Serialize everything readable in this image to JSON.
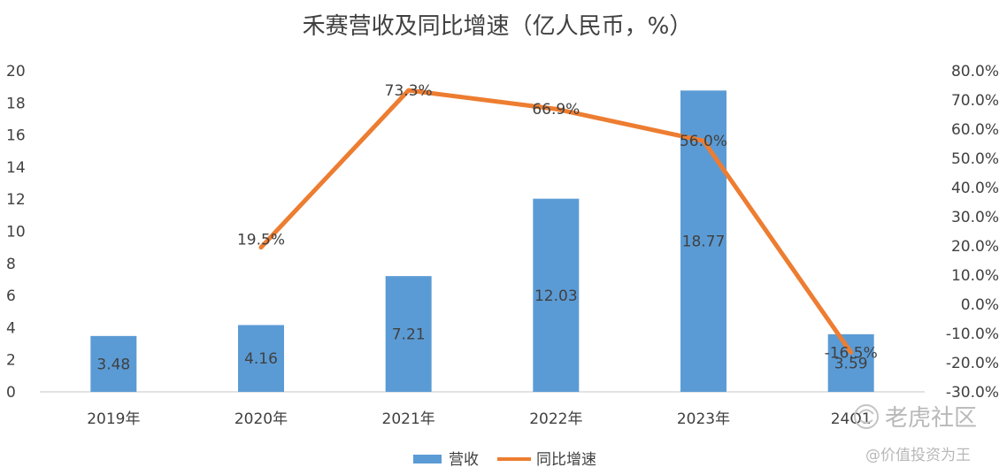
{
  "chart_data": {
    "type": "bar",
    "title": "禾赛营收及同比增速（亿人民币，%）",
    "categories": [
      "2019年",
      "2020年",
      "2021年",
      "2022年",
      "2023年",
      "24Q1"
    ],
    "series": [
      {
        "name": "营收",
        "type": "bar",
        "axis": "left",
        "values": [
          3.48,
          4.16,
          7.21,
          12.03,
          18.77,
          3.59
        ],
        "labels": [
          "3.48",
          "4.16",
          "7.21",
          "12.03",
          "18.77",
          "3.59"
        ]
      },
      {
        "name": "同比增速",
        "type": "line",
        "axis": "right",
        "values": [
          null,
          19.5,
          73.3,
          66.9,
          56.0,
          -16.5
        ],
        "labels": [
          "",
          "19.5%",
          "73.3%",
          "66.9%",
          "56.0%",
          "-16.5%"
        ]
      }
    ],
    "y_left": {
      "range": [
        0,
        20
      ],
      "ticks": [
        "0",
        "2",
        "4",
        "6",
        "8",
        "10",
        "12",
        "14",
        "16",
        "18",
        "20"
      ]
    },
    "y_right": {
      "range": [
        -30,
        80
      ],
      "ticks": [
        "-30.0%",
        "-20.0%",
        "-10.0%",
        "0.0%",
        "10.0%",
        "20.0%",
        "30.0%",
        "40.0%",
        "50.0%",
        "60.0%",
        "70.0%",
        "80.0%"
      ]
    },
    "legend_position": "bottom",
    "grid": false,
    "colors": {
      "bar": "#5b9bd5",
      "line": "#ed7d31",
      "axis": "#d9d9d9",
      "text": "#404040"
    }
  },
  "watermark": {
    "brand": "老虎社区",
    "handle": "@价值投资为王"
  }
}
